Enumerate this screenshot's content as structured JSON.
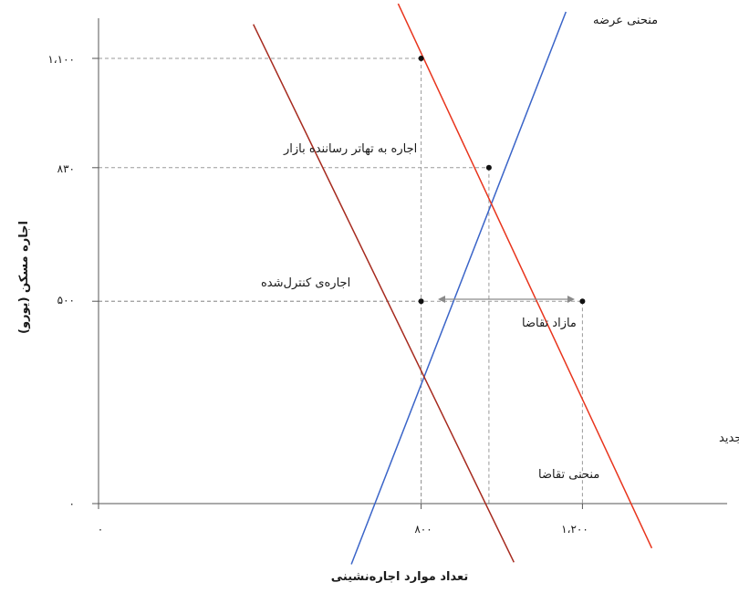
{
  "chart_data": {
    "type": "line",
    "xlabel": "تعداد موارد اجاره‌نشینی",
    "ylabel": "اجاره مسکن (یورو)",
    "xlim": [
      0,
      1560
    ],
    "ylim": [
      0,
      1100
    ],
    "x_ticks": [
      {
        "value": 0,
        "label": "۰"
      },
      {
        "value": 800,
        "label": "۸۰۰"
      },
      {
        "value": 1200,
        "label": "۱،۲۰۰"
      }
    ],
    "y_ticks": [
      {
        "value": 0,
        "label": "۰"
      },
      {
        "value": 500,
        "label": "۵۰۰"
      },
      {
        "value": 830,
        "label": "۸۳۰"
      },
      {
        "value": 1100,
        "label": "۱،۱۰۰"
      }
    ],
    "series": [
      {
        "name": "منحنی عرضه",
        "color": "#3a64c8",
        "points": [
          [
            627,
            -150
          ],
          [
            1159,
            1215
          ]
        ]
      },
      {
        "name": "منحنی تقاضا",
        "color": "#a62a1e",
        "points": [
          [
            384,
            1184
          ],
          [
            1030,
            -145
          ]
        ]
      },
      {
        "name": "منحنی تقاضای جدید",
        "color": "#e8341c",
        "points": [
          [
            743,
            1235
          ],
          [
            1372,
            -110
          ]
        ]
      }
    ],
    "points": [
      {
        "x": 800,
        "y": 1100
      },
      {
        "x": 968,
        "y": 830
      },
      {
        "x": 800,
        "y": 500
      },
      {
        "x": 1200,
        "y": 500
      }
    ],
    "annotations": {
      "market_rent": "اجاره به تهاتر رساننده بازار",
      "controlled_rent": "اجاره‌ی کنترل‌شده",
      "excess_demand": "مازاد تقاضا"
    },
    "grid": false
  }
}
